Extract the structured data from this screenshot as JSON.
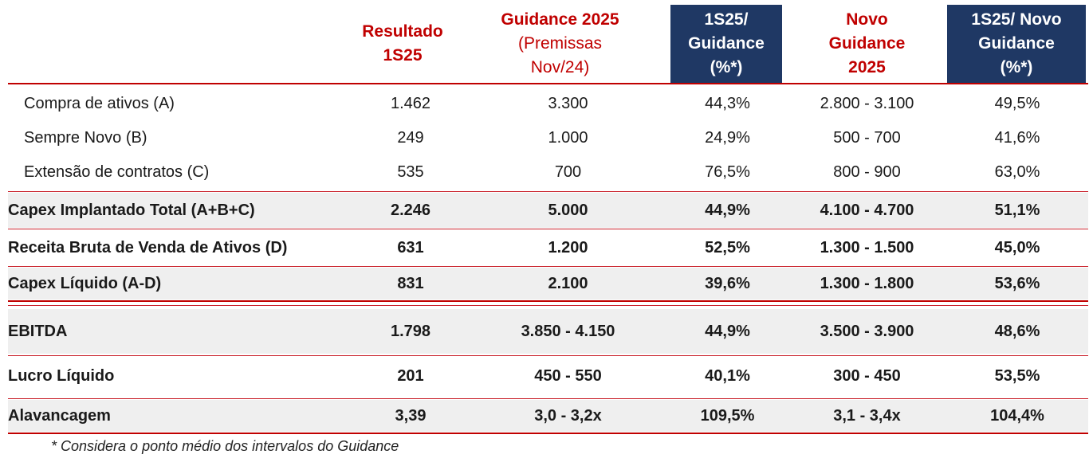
{
  "headers": {
    "col1": [
      "Resultado",
      "1S25"
    ],
    "col2_title": "Guidance 2025",
    "col2_sub": [
      "(Premissas",
      "Nov/24)"
    ],
    "col3": [
      "1S25/",
      "Guidance",
      "(%*)"
    ],
    "col4": [
      "Novo",
      "Guidance",
      "2025"
    ],
    "col5": [
      "1S25/ Novo",
      "Guidance",
      "(%*)"
    ]
  },
  "rows": [
    {
      "label": "Compra de ativos (A)",
      "c1": "1.462",
      "c2": "3.300",
      "c3": "44,3%",
      "c4": "2.800 - 3.100",
      "c5": "49,5%"
    },
    {
      "label": "Sempre Novo (B)",
      "c1": "249",
      "c2": "1.000",
      "c3": "24,9%",
      "c4": "500 - 700",
      "c5": "41,6%"
    },
    {
      "label": "Extensão de contratos (C)",
      "c1": "535",
      "c2": "700",
      "c3": "76,5%",
      "c4": "800 - 900",
      "c5": "63,0%"
    },
    {
      "label": "Capex Implantado Total (A+B+C)",
      "c1": "2.246",
      "c2": "5.000",
      "c3": "44,9%",
      "c4": "4.100 - 4.700",
      "c5": "51,1%"
    },
    {
      "label": "Receita Bruta de Venda de Ativos (D)",
      "c1": "631",
      "c2": "1.200",
      "c3": "52,5%",
      "c4": "1.300 - 1.500",
      "c5": "45,0%"
    },
    {
      "label": "Capex Líquido (A-D)",
      "c1": "831",
      "c2": "2.100",
      "c3": "39,6%",
      "c4": "1.300 - 1.800",
      "c5": "53,6%"
    },
    {
      "label": "EBITDA",
      "c1": "1.798",
      "c2": "3.850 - 4.150",
      "c3": "44,9%",
      "c4": "3.500 - 3.900",
      "c5": "48,6%"
    },
    {
      "label": "Lucro Líquido",
      "c1": "201",
      "c2": "450 - 550",
      "c3": "40,1%",
      "c4": "300 - 450",
      "c5": "53,5%"
    },
    {
      "label": "Alavancagem",
      "c1": "3,39",
      "c2": "3,0 - 3,2x",
      "c3": "109,5%",
      "c4": "3,1 - 3,4x",
      "c5": "104,4%"
    }
  ],
  "footnote": "* Considera o ponto médio dos intervalos do Guidance",
  "colors": {
    "red": "#c00000",
    "navy": "#1f3864",
    "shade": "#efefef"
  }
}
